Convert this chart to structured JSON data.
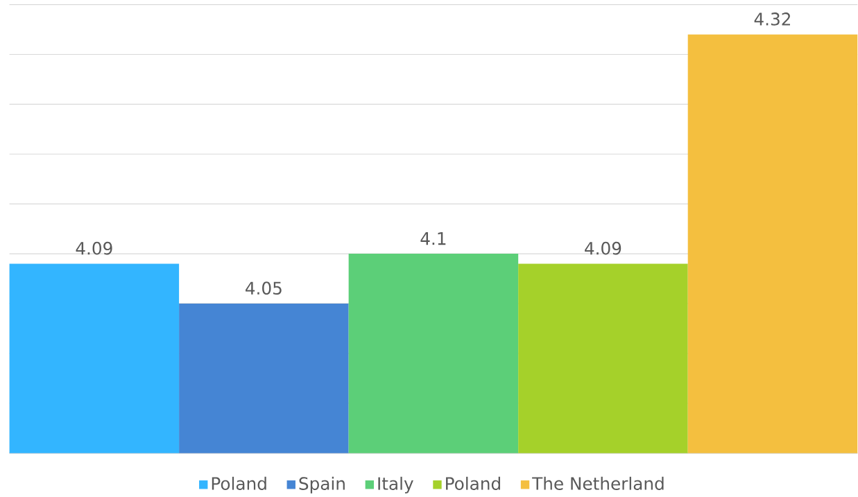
{
  "chart_data": {
    "type": "bar",
    "categories": [
      null
    ],
    "series": [
      {
        "name": "Poland",
        "color": "#33b5ff",
        "values": [
          4.09
        ]
      },
      {
        "name": "Spain",
        "color": "#4585d4",
        "values": [
          4.05
        ]
      },
      {
        "name": "Italy",
        "color": "#5ccf78",
        "values": [
          4.1
        ]
      },
      {
        "name": "Poland",
        "color": "#a5d12a",
        "values": [
          4.09
        ]
      },
      {
        "name": "The Netherland",
        "color": "#f4bf3f",
        "values": [
          4.32
        ]
      }
    ],
    "ylim": [
      3.9,
      4.35
    ],
    "yticks": [
      {
        "value": 3.9,
        "label": null
      },
      {
        "value": 3.95,
        "label": null
      },
      {
        "value": 4.0,
        "label": null
      },
      {
        "value": 4.05,
        "label": null
      },
      {
        "value": 4.1,
        "label": null
      },
      {
        "value": 4.15,
        "label": null
      },
      {
        "value": 4.2,
        "label": null
      },
      {
        "value": 4.25,
        "label": null
      },
      {
        "value": 4.3,
        "label": null
      },
      {
        "value": 4.35,
        "label": null
      }
    ],
    "grid": "y",
    "legend": "bottom",
    "data_labels": true
  }
}
